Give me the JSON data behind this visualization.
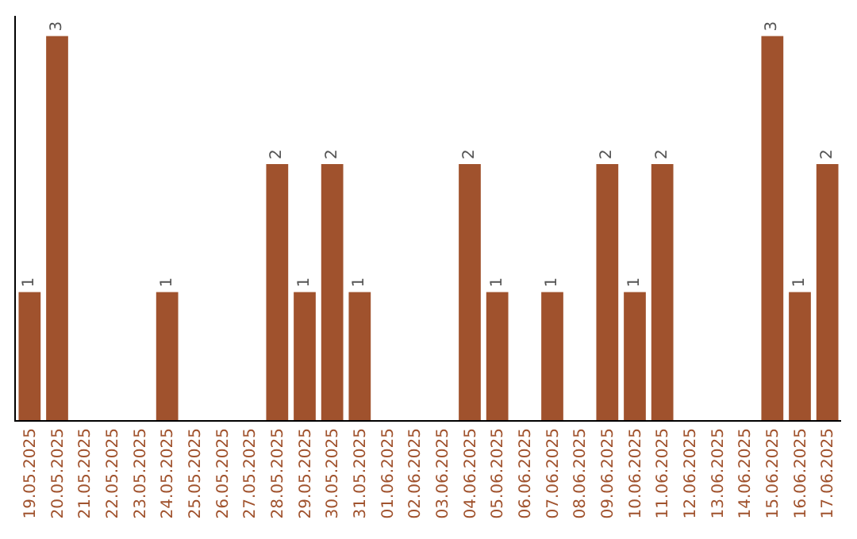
{
  "chart_data": {
    "type": "bar",
    "categories": [
      "19.05.2025",
      "20.05.2025",
      "21.05.2025",
      "22.05.2025",
      "23.05.2025",
      "24.05.2025",
      "25.05.2025",
      "26.05.2025",
      "27.05.2025",
      "28.05.2025",
      "29.05.2025",
      "30.05.2025",
      "31.05.2025",
      "01.06.2025",
      "02.06.2025",
      "03.06.2025",
      "04.06.2025",
      "05.06.2025",
      "06.06.2025",
      "07.06.2025",
      "08.06.2025",
      "09.06.2025",
      "10.06.2025",
      "11.06.2025",
      "12.06.2025",
      "13.06.2025",
      "14.06.2025",
      "15.06.2025",
      "16.06.2025",
      "17.06.2025"
    ],
    "values": [
      1,
      3,
      0,
      0,
      0,
      1,
      0,
      0,
      0,
      2,
      1,
      2,
      1,
      0,
      0,
      0,
      2,
      1,
      0,
      1,
      0,
      2,
      1,
      2,
      0,
      0,
      0,
      3,
      1,
      2
    ],
    "value_labels": [
      "1",
      "3",
      null,
      null,
      null,
      "1",
      null,
      null,
      null,
      "2",
      "1",
      "2",
      "1",
      null,
      null,
      null,
      "2",
      "1",
      null,
      "1",
      null,
      "2",
      "1",
      "2",
      null,
      null,
      null,
      "3",
      "1",
      "2"
    ],
    "color": "#a0522d",
    "grid": false,
    "legend": false,
    "tick_labels": "x"
  }
}
